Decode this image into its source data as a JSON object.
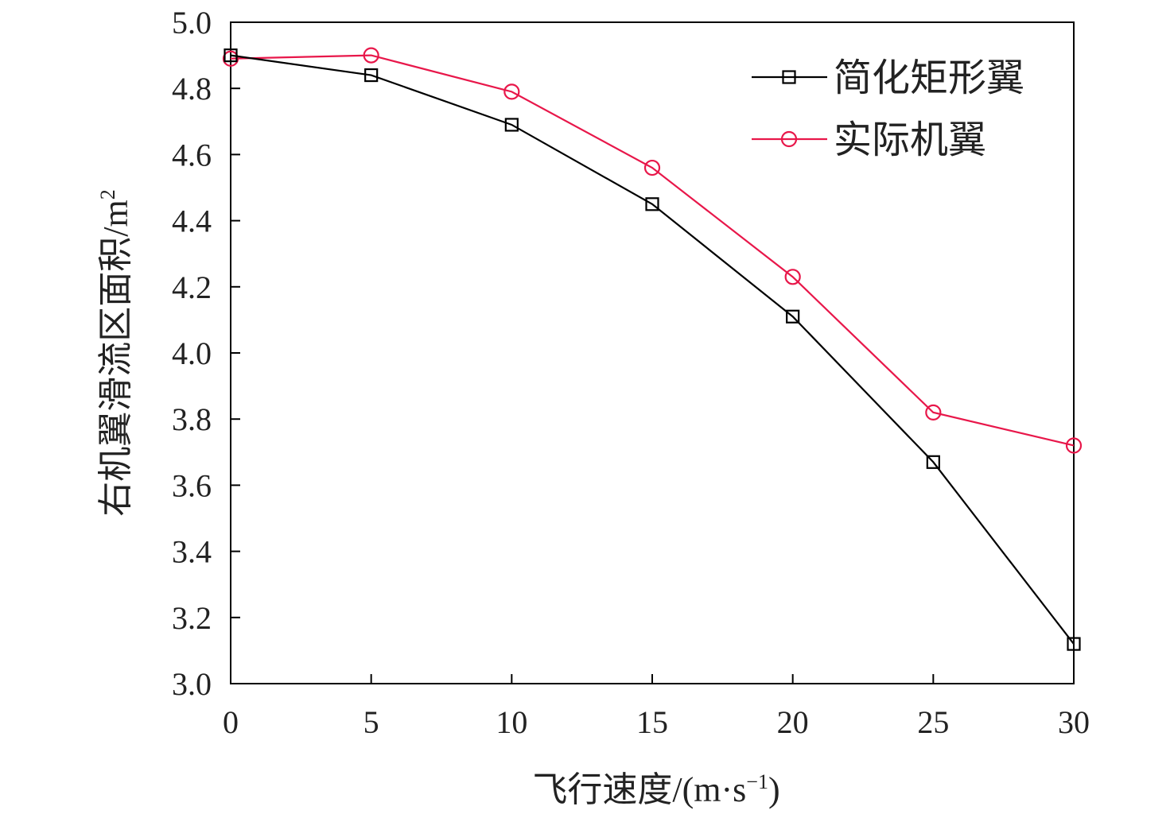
{
  "chart_data": {
    "type": "line",
    "title": "",
    "xlabel": "飞行速度/(m·s",
    "xlabel_sup": "−1",
    "xlabel_end": ")",
    "ylabel": "右机翼滑流区面积/m",
    "ylabel_sup": "2",
    "x": [
      0,
      5,
      10,
      15,
      20,
      25,
      30
    ],
    "xlim": [
      0,
      30
    ],
    "ylim": [
      3.0,
      5.0
    ],
    "xticks": [
      "0",
      "5",
      "10",
      "15",
      "20",
      "25",
      "30"
    ],
    "yticks": [
      "3.0",
      "3.2",
      "3.4",
      "3.6",
      "3.8",
      "4.0",
      "4.2",
      "4.4",
      "4.6",
      "4.8",
      "5.0"
    ],
    "grid": false,
    "legend_position": "top-right",
    "series": [
      {
        "name": "简化矩形翼",
        "marker": "square",
        "color": "#000000",
        "values": [
          4.9,
          4.84,
          4.69,
          4.45,
          4.11,
          3.67,
          3.12
        ]
      },
      {
        "name": "实际机翼",
        "marker": "circle",
        "color": "#e8174a",
        "values": [
          4.89,
          4.9,
          4.79,
          4.56,
          4.23,
          3.82,
          3.72
        ]
      }
    ]
  }
}
